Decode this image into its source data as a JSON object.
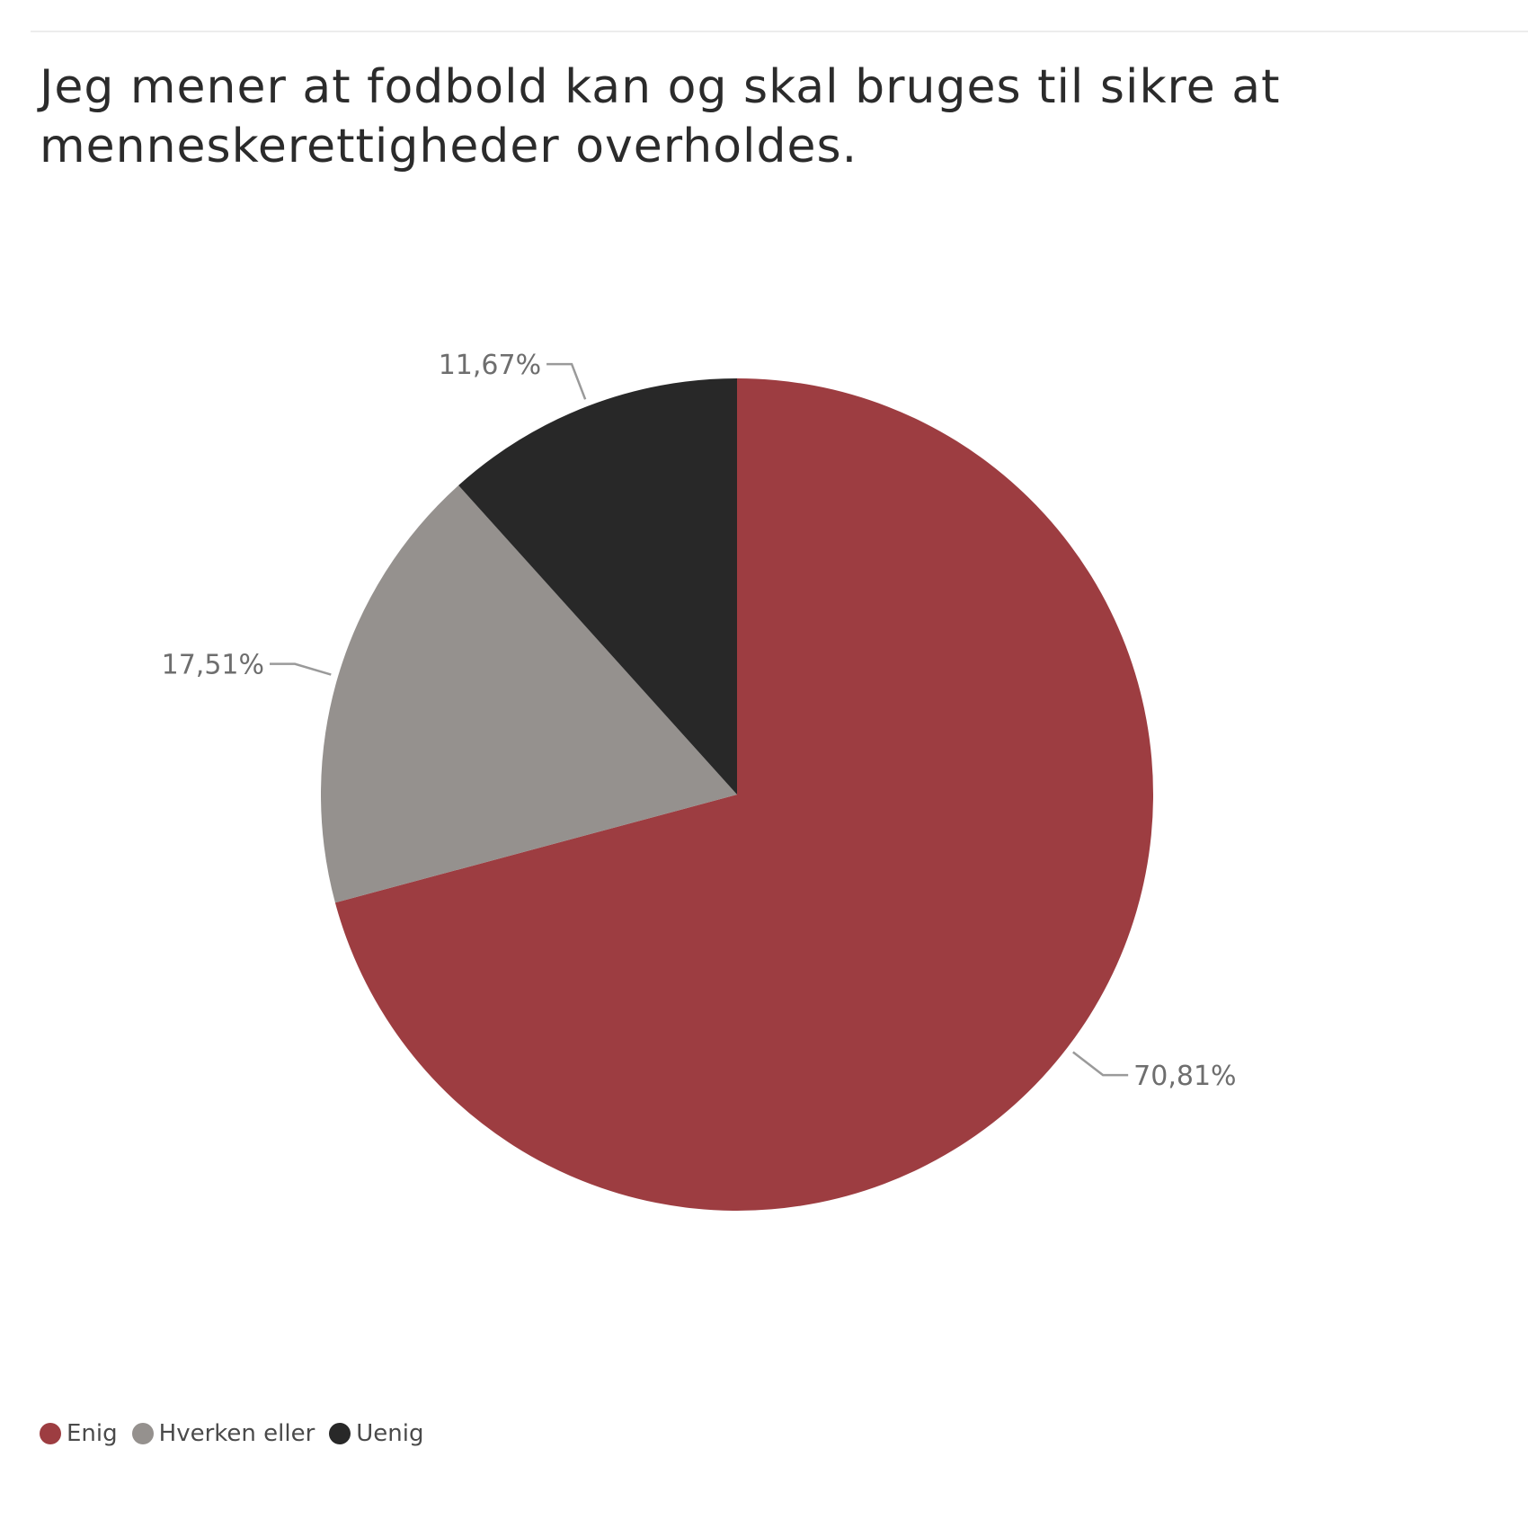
{
  "chart_data": {
    "type": "pie",
    "title": "Jeg mener at fodbold kan og skal bruges til sikre at menneskerettigheder overholdes.",
    "slices": [
      {
        "name": "Enig",
        "value": 70.81,
        "label": "70,81%",
        "color": "#9d3d41"
      },
      {
        "name": "Hverken eller",
        "value": 17.51,
        "label": "17,51%",
        "color": "#95918e"
      },
      {
        "name": "Uenig",
        "value": 11.67,
        "label": "11,67%",
        "color": "#282828"
      }
    ],
    "legend_position": "bottom-left",
    "start_angle": "top, clockwise"
  }
}
